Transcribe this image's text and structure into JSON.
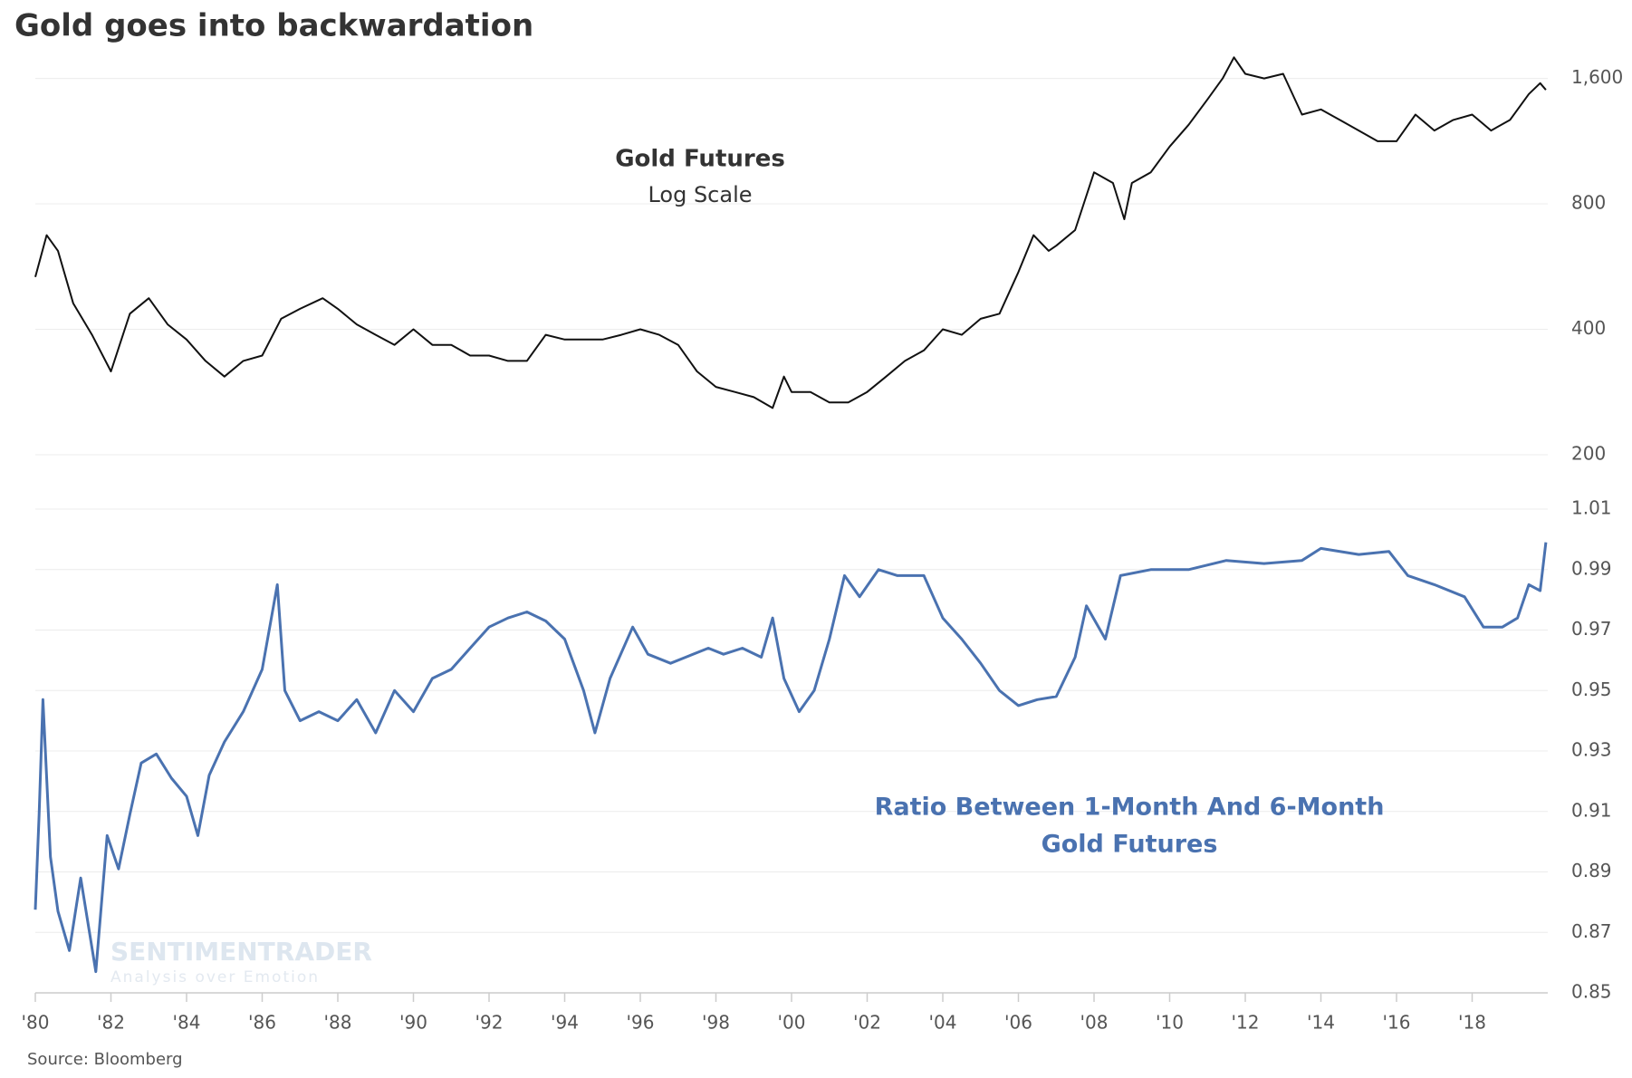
{
  "chart_data": [
    {
      "type": "line",
      "title": "Gold goes into backwardation",
      "annotations": [
        "Gold Futures",
        "Log Scale"
      ],
      "log_scale": true,
      "grid": true,
      "color": "#111111",
      "xlim": [
        1980,
        2020
      ],
      "ylim": [
        200,
        2000
      ],
      "yticks": [
        200,
        400,
        800,
        {
          "value": 1600,
          "label": "1,600"
        }
      ],
      "x": [
        1980.0,
        1980.3,
        1980.6,
        1981.0,
        1981.5,
        1982.0,
        1982.5,
        1983.0,
        1983.5,
        1984.0,
        1984.5,
        1985.0,
        1985.5,
        1986.0,
        1986.5,
        1987.0,
        1987.6,
        1988.0,
        1988.5,
        1989.0,
        1989.5,
        1990.0,
        1990.5,
        1991.0,
        1991.5,
        1992.0,
        1992.5,
        1993.0,
        1993.5,
        1994.0,
        1994.5,
        1995.0,
        1995.5,
        1996.0,
        1996.5,
        1997.0,
        1997.5,
        1998.0,
        1998.5,
        1999.0,
        1999.5,
        1999.8,
        2000.0,
        2000.5,
        2001.0,
        2001.5,
        2002.0,
        2002.5,
        2003.0,
        2003.5,
        2004.0,
        2004.5,
        2005.0,
        2005.5,
        2006.0,
        2006.4,
        2006.8,
        2007.0,
        2007.5,
        2008.0,
        2008.5,
        2008.8,
        2009.0,
        2009.5,
        2010.0,
        2010.5,
        2011.0,
        2011.4,
        2011.7,
        2012.0,
        2012.5,
        2013.0,
        2013.5,
        2014.0,
        2014.5,
        2015.0,
        2015.5,
        2016.0,
        2016.5,
        2017.0,
        2017.5,
        2018.0,
        2018.5,
        2019.0,
        2019.5,
        2019.8,
        2019.95
      ],
      "values": [
        534,
        673,
        617,
        462,
        388,
        317,
        436,
        475,
        411,
        378,
        336,
        308,
        336,
        346,
        424,
        448,
        475,
        448,
        411,
        388,
        367,
        400,
        367,
        367,
        346,
        346,
        336,
        336,
        388,
        378,
        378,
        378,
        388,
        400,
        388,
        367,
        317,
        291,
        283,
        275,
        259,
        308,
        283,
        283,
        267,
        267,
        283,
        308,
        336,
        356,
        400,
        388,
        424,
        436,
        549,
        673,
        617,
        635,
        692,
        952,
        898,
        735,
        898,
        952,
        1098,
        1238,
        1425,
        1600,
        1798,
        1641,
        1600,
        1641,
        1310,
        1348,
        1272,
        1200,
        1131,
        1131,
        1310,
        1200,
        1272,
        1310,
        1200,
        1272,
        1468,
        1559,
        1502
      ]
    },
    {
      "type": "line",
      "annotations": [
        "Ratio Between  1-Month  And 6-Month",
        "Gold Futures"
      ],
      "source": "Source:  Bloomberg",
      "watermark": [
        "SENTIMENTRADER",
        "Analysis over Emotion"
      ],
      "grid": true,
      "color": "#4a72b0",
      "xlim": [
        1980,
        2020
      ],
      "ylim": [
        0.85,
        1.01
      ],
      "xticks": [
        {
          "value": 1980,
          "label": "'80"
        },
        {
          "value": 1982,
          "label": "'82"
        },
        {
          "value": 1984,
          "label": "'84"
        },
        {
          "value": 1986,
          "label": "'86"
        },
        {
          "value": 1988,
          "label": "'88"
        },
        {
          "value": 1990,
          "label": "'90"
        },
        {
          "value": 1992,
          "label": "'92"
        },
        {
          "value": 1994,
          "label": "'94"
        },
        {
          "value": 1996,
          "label": "'96"
        },
        {
          "value": 1998,
          "label": "'98"
        },
        {
          "value": 2000,
          "label": "'00"
        },
        {
          "value": 2002,
          "label": "'02"
        },
        {
          "value": 2004,
          "label": "'04"
        },
        {
          "value": 2006,
          "label": "'06"
        },
        {
          "value": 2008,
          "label": "'08"
        },
        {
          "value": 2010,
          "label": "'10"
        },
        {
          "value": 2012,
          "label": "'12"
        },
        {
          "value": 2014,
          "label": "'14"
        },
        {
          "value": 2016,
          "label": "'16"
        },
        {
          "value": 2018,
          "label": "'18"
        }
      ],
      "yticks": [
        0.85,
        0.87,
        0.89,
        0.91,
        0.93,
        0.95,
        0.97,
        0.99,
        1.01
      ],
      "x": [
        1980.0,
        1980.1,
        1980.2,
        1980.4,
        1980.6,
        1980.9,
        1981.2,
        1981.6,
        1981.9,
        1982.2,
        1982.5,
        1982.8,
        1983.2,
        1983.6,
        1984.0,
        1984.3,
        1984.6,
        1985.0,
        1985.5,
        1986.0,
        1986.4,
        1986.6,
        1987.0,
        1987.5,
        1988.0,
        1988.5,
        1989.0,
        1989.5,
        1990.0,
        1990.5,
        1991.0,
        1991.5,
        1992.0,
        1992.5,
        1993.0,
        1993.5,
        1994.0,
        1994.5,
        1994.8,
        1995.2,
        1995.8,
        1996.2,
        1996.8,
        1997.2,
        1997.8,
        1998.2,
        1998.7,
        1999.2,
        1999.5,
        1999.8,
        2000.2,
        2000.6,
        2001.0,
        2001.4,
        2001.8,
        2002.3,
        2002.8,
        2003.5,
        2004.0,
        2004.5,
        2005.0,
        2005.5,
        2006.0,
        2006.5,
        2007.0,
        2007.5,
        2007.8,
        2008.3,
        2008.7,
        2009.5,
        2010.5,
        2011.5,
        2012.5,
        2013.5,
        2014.0,
        2015.0,
        2015.8,
        2016.3,
        2017.0,
        2017.8,
        2018.3,
        2018.8,
        2019.2,
        2019.5,
        2019.8,
        2019.95
      ],
      "values": [
        0.8775,
        0.909,
        0.947,
        0.895,
        0.877,
        0.864,
        0.888,
        0.857,
        0.902,
        0.891,
        0.909,
        0.926,
        0.929,
        0.921,
        0.915,
        0.902,
        0.922,
        0.933,
        0.943,
        0.957,
        0.985,
        0.95,
        0.94,
        0.943,
        0.94,
        0.947,
        0.936,
        0.95,
        0.943,
        0.954,
        0.957,
        0.964,
        0.971,
        0.974,
        0.976,
        0.973,
        0.967,
        0.95,
        0.936,
        0.954,
        0.971,
        0.962,
        0.959,
        0.961,
        0.964,
        0.962,
        0.964,
        0.961,
        0.974,
        0.954,
        0.943,
        0.95,
        0.967,
        0.988,
        0.981,
        0.99,
        0.988,
        0.988,
        0.974,
        0.967,
        0.959,
        0.95,
        0.945,
        0.947,
        0.948,
        0.961,
        0.978,
        0.967,
        0.988,
        0.99,
        0.99,
        0.993,
        0.992,
        0.993,
        0.997,
        0.995,
        0.996,
        0.988,
        0.985,
        0.981,
        0.971,
        0.971,
        0.974,
        0.985,
        0.983,
        0.999
      ]
    }
  ]
}
